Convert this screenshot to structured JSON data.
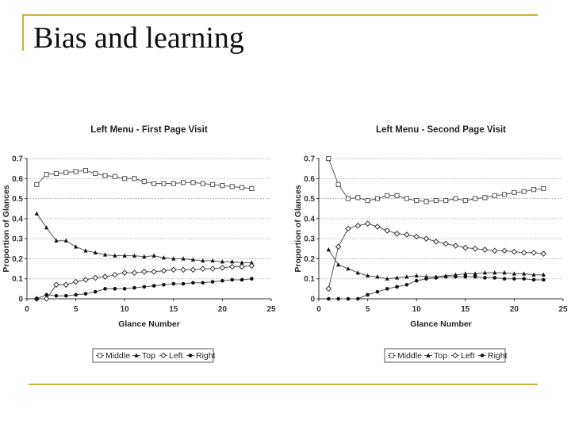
{
  "slide": {
    "title": "Bias and learning",
    "accent_color": "#c8b23c"
  },
  "chart_data": [
    {
      "type": "line",
      "title": "Left Menu - First Page Visit",
      "xlabel": "Glance Number",
      "ylabel": "Proportion of Glances",
      "xlim": [
        0,
        25
      ],
      "ylim": [
        0,
        0.7
      ],
      "xticks": [
        0,
        5,
        10,
        15,
        20,
        25
      ],
      "yticks": [
        0,
        0.1,
        0.2,
        0.3,
        0.4,
        0.5,
        0.6,
        0.7
      ],
      "grid": "horizontal dotted",
      "legend_position": "bottom",
      "x": [
        1,
        2,
        3,
        4,
        5,
        6,
        7,
        8,
        9,
        10,
        11,
        12,
        13,
        14,
        15,
        16,
        17,
        18,
        19,
        20,
        21,
        22,
        23
      ],
      "series": [
        {
          "name": "Middle",
          "marker": "open-square",
          "values": [
            0.57,
            0.62,
            0.625,
            0.63,
            0.635,
            0.64,
            0.625,
            0.615,
            0.61,
            0.6,
            0.6,
            0.585,
            0.575,
            0.575,
            0.575,
            0.58,
            0.58,
            0.575,
            0.57,
            0.565,
            0.56,
            0.555,
            0.55
          ]
        },
        {
          "name": "Top",
          "marker": "filled-triangle",
          "values": [
            0.425,
            0.355,
            0.29,
            0.29,
            0.26,
            0.24,
            0.23,
            0.22,
            0.215,
            0.215,
            0.215,
            0.21,
            0.215,
            0.205,
            0.2,
            0.2,
            0.195,
            0.19,
            0.19,
            0.185,
            0.185,
            0.18,
            0.18
          ]
        },
        {
          "name": "Left",
          "marker": "open-diamond",
          "values": [
            0.0,
            0.0,
            0.07,
            0.07,
            0.085,
            0.095,
            0.105,
            0.11,
            0.12,
            0.13,
            0.13,
            0.135,
            0.135,
            0.14,
            0.145,
            0.145,
            0.145,
            0.15,
            0.15,
            0.155,
            0.16,
            0.16,
            0.165
          ]
        },
        {
          "name": "Right",
          "marker": "filled-circle",
          "values": [
            0.0,
            0.02,
            0.015,
            0.015,
            0.02,
            0.025,
            0.035,
            0.05,
            0.05,
            0.05,
            0.055,
            0.06,
            0.065,
            0.07,
            0.075,
            0.075,
            0.08,
            0.08,
            0.085,
            0.09,
            0.095,
            0.095,
            0.1
          ]
        }
      ]
    },
    {
      "type": "line",
      "title": "Left Menu - Second Page Visit",
      "xlabel": "Glance Number",
      "ylabel": "Proportion of Glances",
      "xlim": [
        0,
        25
      ],
      "ylim": [
        0,
        0.7
      ],
      "xticks": [
        0,
        5,
        10,
        15,
        20,
        25
      ],
      "yticks": [
        0,
        0.1,
        0.2,
        0.3,
        0.4,
        0.5,
        0.6,
        0.7
      ],
      "grid": "horizontal dotted",
      "legend_position": "bottom",
      "x": [
        1,
        2,
        3,
        4,
        5,
        6,
        7,
        8,
        9,
        10,
        11,
        12,
        13,
        14,
        15,
        16,
        17,
        18,
        19,
        20,
        21,
        22,
        23
      ],
      "series": [
        {
          "name": "Middle",
          "marker": "open-square",
          "values": [
            0.7,
            0.57,
            0.5,
            0.505,
            0.49,
            0.5,
            0.515,
            0.515,
            0.5,
            0.49,
            0.485,
            0.49,
            0.49,
            0.5,
            0.49,
            0.5,
            0.505,
            0.515,
            0.52,
            0.53,
            0.535,
            0.545,
            0.55
          ]
        },
        {
          "name": "Top",
          "marker": "filled-triangle",
          "values": [
            0.245,
            0.17,
            0.15,
            0.13,
            0.115,
            0.11,
            0.1,
            0.105,
            0.11,
            0.115,
            0.11,
            0.11,
            0.115,
            0.12,
            0.125,
            0.125,
            0.13,
            0.13,
            0.13,
            0.125,
            0.125,
            0.12,
            0.12
          ]
        },
        {
          "name": "Left",
          "marker": "open-diamond",
          "values": [
            0.05,
            0.26,
            0.35,
            0.365,
            0.375,
            0.36,
            0.34,
            0.325,
            0.32,
            0.31,
            0.3,
            0.285,
            0.275,
            0.265,
            0.255,
            0.25,
            0.245,
            0.24,
            0.24,
            0.235,
            0.23,
            0.23,
            0.225
          ]
        },
        {
          "name": "Right",
          "marker": "filled-circle",
          "values": [
            0.0,
            0.0,
            0.0,
            0.0,
            0.02,
            0.035,
            0.05,
            0.06,
            0.07,
            0.09,
            0.1,
            0.105,
            0.11,
            0.11,
            0.11,
            0.11,
            0.105,
            0.105,
            0.1,
            0.1,
            0.1,
            0.095,
            0.095
          ]
        }
      ]
    }
  ]
}
